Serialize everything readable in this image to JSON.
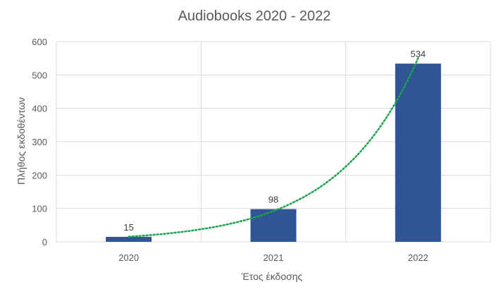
{
  "chart_data": {
    "type": "bar",
    "title": "Audiobooks 2020 - 2022",
    "xlabel": "Έτος έκδοσης",
    "ylabel": "Πλήθος εκδοθέντων",
    "categories": [
      "2020",
      "2021",
      "2022"
    ],
    "values": [
      15,
      98,
      534
    ],
    "data_labels": [
      "15",
      "98",
      "534"
    ],
    "ylim": [
      0,
      600
    ],
    "yticks": [
      0,
      100,
      200,
      300,
      400,
      500,
      600
    ],
    "grid": true,
    "legend": "none",
    "trendline": {
      "type": "exponential",
      "style": "dotted"
    },
    "colors": {
      "bar": "#2f5597",
      "trendline": "#1aa34a",
      "grid": "#d9d9d9",
      "text": "#595959"
    }
  }
}
